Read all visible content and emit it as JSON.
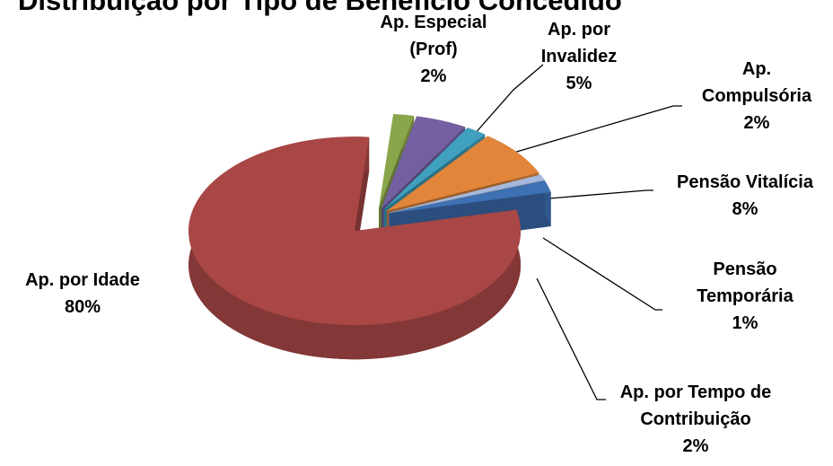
{
  "chart_data": {
    "type": "pie",
    "title": "Distribuição por Tipo de Benefício Concedido",
    "categories": [
      "Ap. Especial (Prof)",
      "Ap. por Invalidez",
      "Ap. Compulsória",
      "Pensão Vitalícia",
      "Pensão Temporária",
      "Ap. por Tempo de Contribuição",
      "Ap. por Idade"
    ],
    "values": [
      2,
      5,
      2,
      8,
      1,
      2,
      80
    ],
    "value_labels": [
      "2%",
      "5%",
      "2%",
      "8%",
      "1%",
      "2%",
      "80%"
    ],
    "colors": [
      "#8aa64a",
      "#7460a0",
      "#3fa0bf",
      "#e0853a",
      "#a5b8dc",
      "#3e70b4",
      "#a84745"
    ]
  }
}
